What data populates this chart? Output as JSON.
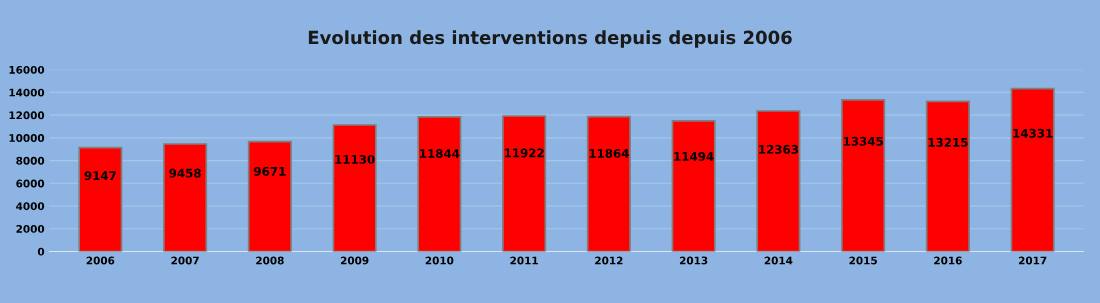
{
  "chart_data": {
    "type": "bar",
    "title": "Evolution des interventions depuis depuis 2006",
    "categories": [
      "2006",
      "2007",
      "2008",
      "2009",
      "2010",
      "2011",
      "2012",
      "2013",
      "2014",
      "2015",
      "2016",
      "2017"
    ],
    "values": [
      9147,
      9458,
      9671,
      11130,
      11844,
      11922,
      11864,
      11494,
      12363,
      13345,
      13215,
      14331
    ],
    "color": "#ff0000",
    "ylim": [
      0,
      16000
    ],
    "yticks": [
      0,
      2000,
      4000,
      6000,
      8000,
      10000,
      12000,
      14000,
      16000
    ],
    "grid": "y",
    "data_labels": true
  }
}
